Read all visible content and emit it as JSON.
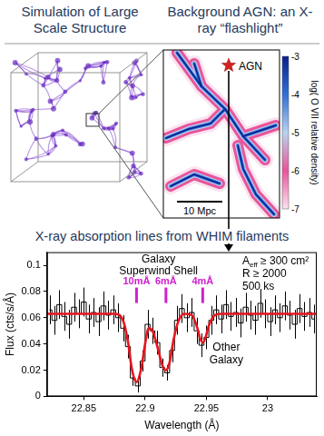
{
  "panels": {
    "simulation": {
      "title": "Simulation of Large Scale Structure"
    },
    "density_map": {
      "title": "Background AGN: an X-ray “flashlight”",
      "source_label": "AGN",
      "scale_label": "10 Mpc",
      "colorbar": {
        "label": "log( O VII relative density)",
        "range": [
          -7,
          -3
        ],
        "ticks": [
          -3,
          -4,
          -5,
          -6,
          -7
        ]
      }
    }
  },
  "chart_data": {
    "type": "line",
    "title": "X-ray absorption lines from WHIM filaments",
    "x_label": "Wavelength (Å)",
    "y_label": "Flux (cts/s/Å)",
    "xlim": [
      22.82,
      23.04
    ],
    "xticks": [
      22.85,
      22.9,
      22.95,
      23
    ],
    "ylim": [
      0,
      0.11
    ],
    "yticks": [
      0,
      0.02,
      0.04,
      0.06,
      0.08,
      0.1
    ],
    "grid": false,
    "series": [
      {
        "color": "#000000",
        "line_style": "steps",
        "x": [
          22.822,
          22.826,
          22.83,
          22.834,
          22.838,
          22.842,
          22.846,
          22.85,
          22.854,
          22.858,
          22.862,
          22.866,
          22.87,
          22.874,
          22.878,
          22.882,
          22.886,
          22.89,
          22.894,
          22.898,
          22.902,
          22.906,
          22.91,
          22.914,
          22.918,
          22.922,
          22.926,
          22.93,
          22.934,
          22.938,
          22.942,
          22.946,
          22.95,
          22.954,
          22.958,
          22.962,
          22.966,
          22.97,
          22.974,
          22.978,
          22.982,
          22.986,
          22.99,
          22.994,
          22.998,
          23.002,
          23.006,
          23.01,
          23.014,
          23.018,
          23.022,
          23.026,
          23.03,
          23.034,
          23.038
        ],
        "values": [
          0.066,
          0.058,
          0.07,
          0.061,
          0.055,
          0.068,
          0.063,
          0.072,
          0.059,
          0.064,
          0.057,
          0.069,
          0.062,
          0.066,
          0.06,
          0.052,
          0.038,
          0.014,
          0.008,
          0.027,
          0.055,
          0.05,
          0.041,
          0.022,
          0.018,
          0.035,
          0.058,
          0.067,
          0.06,
          0.064,
          0.05,
          0.039,
          0.045,
          0.058,
          0.066,
          0.059,
          0.07,
          0.061,
          0.064,
          0.056,
          0.068,
          0.062,
          0.058,
          0.071,
          0.063,
          0.057,
          0.066,
          0.06,
          0.069,
          0.062,
          0.055,
          0.067,
          0.061,
          0.064,
          0.059
        ],
        "errors": [
          0.011,
          0.011,
          0.011,
          0.011,
          0.011,
          0.011,
          0.011,
          0.011,
          0.011,
          0.011,
          0.011,
          0.011,
          0.011,
          0.011,
          0.011,
          0.01,
          0.009,
          0.006,
          0.005,
          0.008,
          0.011,
          0.01,
          0.009,
          0.007,
          0.006,
          0.009,
          0.011,
          0.011,
          0.011,
          0.011,
          0.01,
          0.009,
          0.009,
          0.011,
          0.011,
          0.011,
          0.011,
          0.011,
          0.011,
          0.011,
          0.011,
          0.011,
          0.011,
          0.011,
          0.011,
          0.011,
          0.011,
          0.011,
          0.011,
          0.011,
          0.011,
          0.011,
          0.011,
          0.011,
          0.011
        ]
      },
      {
        "color": "#e8141e",
        "line_style": "solid",
        "x": [
          22.82,
          22.875,
          22.882,
          22.886,
          22.889,
          22.893,
          22.897,
          22.9,
          22.903,
          22.906,
          22.91,
          22.914,
          22.917,
          22.92,
          22.923,
          22.927,
          22.932,
          22.938,
          22.942,
          22.945,
          22.947,
          22.949,
          22.952,
          22.957,
          22.962,
          23.04
        ],
        "values": [
          0.063,
          0.063,
          0.058,
          0.042,
          0.022,
          0.011,
          0.022,
          0.04,
          0.052,
          0.05,
          0.038,
          0.024,
          0.02,
          0.026,
          0.042,
          0.057,
          0.063,
          0.062,
          0.054,
          0.044,
          0.041,
          0.044,
          0.054,
          0.062,
          0.063,
          0.063
        ]
      }
    ],
    "line_markers": {
      "color": "#d020d0",
      "x": [
        22.893,
        22.917,
        22.947
      ],
      "labels": [
        "10mÅ",
        "6mÅ",
        "4mÅ"
      ]
    },
    "annotations": {
      "superwind": [
        "Galaxy",
        "Superwind Shell"
      ],
      "other": [
        "Other",
        "Galaxy"
      ],
      "instrument": {
        "area": {
          "symbol": "A",
          "subscript": "eff",
          "text": " ≥ 300 cm²"
        },
        "lines": [
          "R ≥ 2000",
          "500 ks"
        ]
      }
    }
  }
}
